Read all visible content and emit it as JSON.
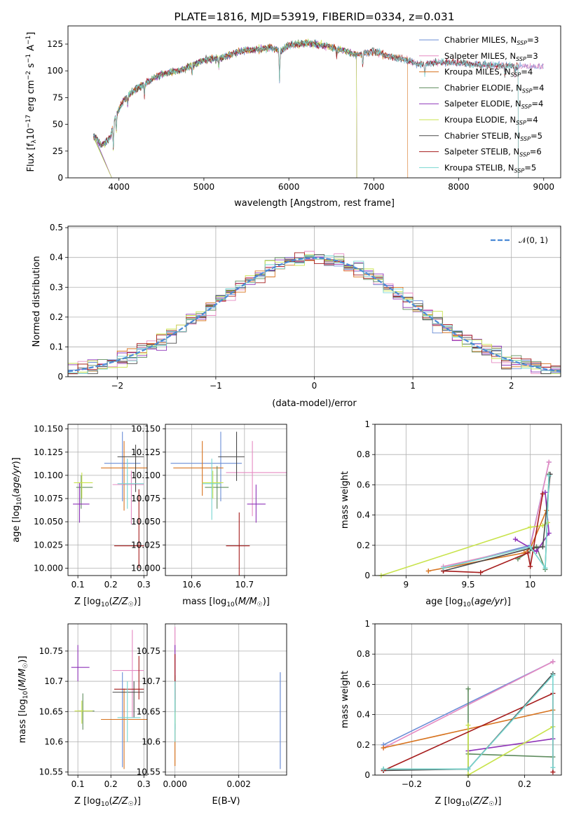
{
  "chart_data": [
    {
      "type": "line",
      "title": "PLATE=1816, MJD=53919, FIBERID=0334, z=0.031",
      "xlabel": "wavelength [Angstrom, rest frame]",
      "ylabel": "Flux [f_λ 10^-17 erg cm^-2 s^-1 A^-1]",
      "xlim": [
        3400,
        9200
      ],
      "ylim": [
        0,
        142
      ],
      "xticks": [
        4000,
        5000,
        6000,
        7000,
        8000,
        9000
      ],
      "yticks": [
        0,
        25,
        50,
        75,
        100,
        125
      ],
      "grid": false,
      "legend": "right",
      "anchor_x": [
        3700,
        3800,
        3900,
        3950,
        4050,
        4150,
        4300,
        4500,
        4700,
        4800,
        5000,
        5200,
        5400,
        5600,
        5800,
        5900,
        6000,
        6200,
        6400,
        6600,
        6800,
        7000,
        7200,
        7400,
        7500,
        7800,
        8200,
        8500,
        8700
      ],
      "anchor_y": [
        40,
        30,
        38,
        55,
        72,
        80,
        88,
        97,
        100,
        103,
        110,
        112,
        118,
        120,
        122,
        118,
        124,
        126,
        124,
        120,
        115,
        118,
        113,
        110,
        106,
        108,
        106,
        105,
        104
      ],
      "series": [
        {
          "name": "Chabrier MILES, N",
          "sub": "SSP",
          "suffix": "=3",
          "color": "#6a8dd6",
          "end": 9000
        },
        {
          "name": "Salpeter MILES, N",
          "sub": "SSP",
          "suffix": "=3",
          "color": "#e58ac2",
          "end": 9000
        },
        {
          "name": "Kroupa MILES, N",
          "sub": "SSP",
          "suffix": "=4",
          "color": "#d7731f",
          "end": 7400
        },
        {
          "name": "Chabrier ELODIE, N",
          "sub": "SSP",
          "suffix": "=4",
          "color": "#5f8c5e",
          "end": 6800
        },
        {
          "name": "Salpeter ELODIE, N",
          "sub": "SSP",
          "suffix": "=4",
          "color": "#8e33b8",
          "end": 6800
        },
        {
          "name": "Kroupa ELODIE, N",
          "sub": "SSP",
          "suffix": "=4",
          "color": "#c8e34b",
          "end": 6800
        },
        {
          "name": "Chabrier STELIB, N",
          "sub": "SSP",
          "suffix": "=5",
          "color": "#4a4a4a",
          "end": 8700
        },
        {
          "name": "Salpeter STELIB, N",
          "sub": "SSP",
          "suffix": "=6",
          "color": "#a61c1c",
          "end": 8700
        },
        {
          "name": "Kroupa STELIB, N",
          "sub": "SSP",
          "suffix": "=5",
          "color": "#76d6d0",
          "end": 8700
        }
      ]
    },
    {
      "type": "histogram",
      "xlabel": "(data-model)/error",
      "ylabel": "Normed distribution",
      "xlim": [
        -2.5,
        2.5
      ],
      "ylim": [
        0,
        0.505
      ],
      "xticks": [
        -2,
        -1,
        0,
        1,
        2
      ],
      "yticks": [
        0.0,
        0.1,
        0.2,
        0.3,
        0.4,
        0.5
      ],
      "grid": true,
      "legend": "top-right",
      "reference": {
        "label": "N(0,1)",
        "color": "#4b8ad6"
      },
      "bin_width": 0.1
    },
    {
      "type": "errorbar",
      "xlabel": "Z [log10(Z/Z☉)]",
      "ylabel": "age  [log10(age/yr)]",
      "xlim": [
        0.07,
        0.31
      ],
      "ylim": [
        9.992,
        10.155
      ],
      "xticks": [
        0.1,
        0.2,
        0.3
      ],
      "yticks": [
        10.0,
        10.025,
        10.05,
        10.075,
        10.1,
        10.125,
        10.15
      ],
      "yticklabels": [
        "10.000",
        "10.025",
        "10.050",
        "10.075",
        "10.100",
        "10.125",
        "10.150"
      ],
      "grid": true
    },
    {
      "type": "errorbar",
      "xlabel": "mass [log10(M/M☉)]",
      "xlim": [
        10.55,
        10.78
      ],
      "ylim": [
        9.992,
        10.155
      ],
      "xticks": [
        10.6,
        10.7
      ],
      "yticks": [
        10.0,
        10.025,
        10.05,
        10.075,
        10.1,
        10.125,
        10.15
      ],
      "yticklabels": [
        "10.000",
        "10.025",
        "10.050",
        "10.075",
        "10.100",
        "10.125",
        "10.150"
      ],
      "grid": true
    },
    {
      "type": "line",
      "xlabel": "age  [log10(age/yr)]",
      "ylabel": "mass weight",
      "xlim": [
        8.75,
        10.25
      ],
      "ylim": [
        0.0,
        1.0
      ],
      "xticks": [
        9.0,
        9.5,
        10.0
      ],
      "yticks": [
        0.0,
        0.2,
        0.4,
        0.6,
        0.8,
        1.0
      ],
      "grid": true
    },
    {
      "type": "errorbar",
      "xlabel": "Z [log10(Z/Z☉)]",
      "ylabel": "mass [log10(M/M☉)]",
      "xlim": [
        0.07,
        0.31
      ],
      "ylim": [
        10.545,
        10.795
      ],
      "xticks": [
        0.1,
        0.2,
        0.3
      ],
      "yticks": [
        10.55,
        10.6,
        10.65,
        10.7,
        10.75
      ],
      "grid": true
    },
    {
      "type": "errorbar",
      "xlabel": "E(B-V)",
      "xlim": [
        -0.0003,
        0.0035
      ],
      "ylim": [
        10.545,
        10.795
      ],
      "xticks": [
        0.0,
        0.002
      ],
      "xticklabels": [
        "0.000",
        "0.002"
      ],
      "yticks": [
        10.55,
        10.6,
        10.65,
        10.7,
        10.75
      ],
      "grid": true
    },
    {
      "type": "line",
      "xlabel": "Z [log10(Z/Z☉)]",
      "ylabel": "mass weight",
      "xlim": [
        -0.33,
        0.33
      ],
      "ylim": [
        0.0,
        1.0
      ],
      "xticks": [
        -0.2,
        0.0,
        0.2
      ],
      "yticks": [
        0.0,
        0.2,
        0.4,
        0.6,
        0.8,
        1.0
      ],
      "grid": true
    }
  ]
}
